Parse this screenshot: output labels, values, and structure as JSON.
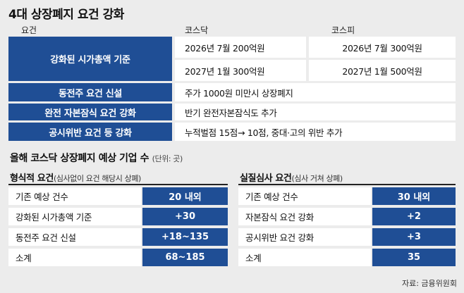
{
  "title": "4대 상장폐지 요건 강화",
  "table1": {
    "headers": [
      "요건",
      "코스닥",
      "코스피"
    ],
    "rows": [
      {
        "label": "강화된 시가총액 기준",
        "kosdaq": [
          "2026년 7월 200억원",
          "2027년 1월 300억원"
        ],
        "kospi": [
          "2026년 7월 300억원",
          "2027년 1월 500억원"
        ]
      },
      {
        "label": "동전주 요건 신설",
        "value": "주가 1000원 미만시 상장폐지"
      },
      {
        "label": "완전 자본잠식 요건 강화",
        "value": "반기 완전자본잠식도 추가"
      },
      {
        "label": "공시위반 요건 등 강화",
        "value": "누적벌점 15점→ 10점, 중대·고의 위반 추가"
      }
    ]
  },
  "section2": {
    "title": "올해 코스닥 상장폐지 예상 기업 수",
    "unit": "(단위: 곳)"
  },
  "left": {
    "title": "형식적 요건",
    "note": "(심사없이 요건 해당시 상폐)",
    "rows": [
      {
        "label": "기존 예상 건수",
        "value": "20 내외"
      },
      {
        "label": "강화된 시가총액 기준",
        "value": "+30"
      },
      {
        "label": "동전주 요건 신설",
        "value": "+18~135"
      },
      {
        "label": "소계",
        "value": "68~185"
      }
    ]
  },
  "right": {
    "title": "실질심사 요건",
    "note": "(심사 거쳐 상폐)",
    "rows": [
      {
        "label": "기존 예상 건수",
        "value": "30 내외"
      },
      {
        "label": "자본잠식 요건 강화",
        "value": "+2"
      },
      {
        "label": "공시위반 요건 강화",
        "value": "+3"
      },
      {
        "label": "소계",
        "value": "35"
      }
    ]
  },
  "source": "자료: 금융위원회",
  "colors": {
    "navy": "#1f4e95",
    "background": "#ececec"
  }
}
